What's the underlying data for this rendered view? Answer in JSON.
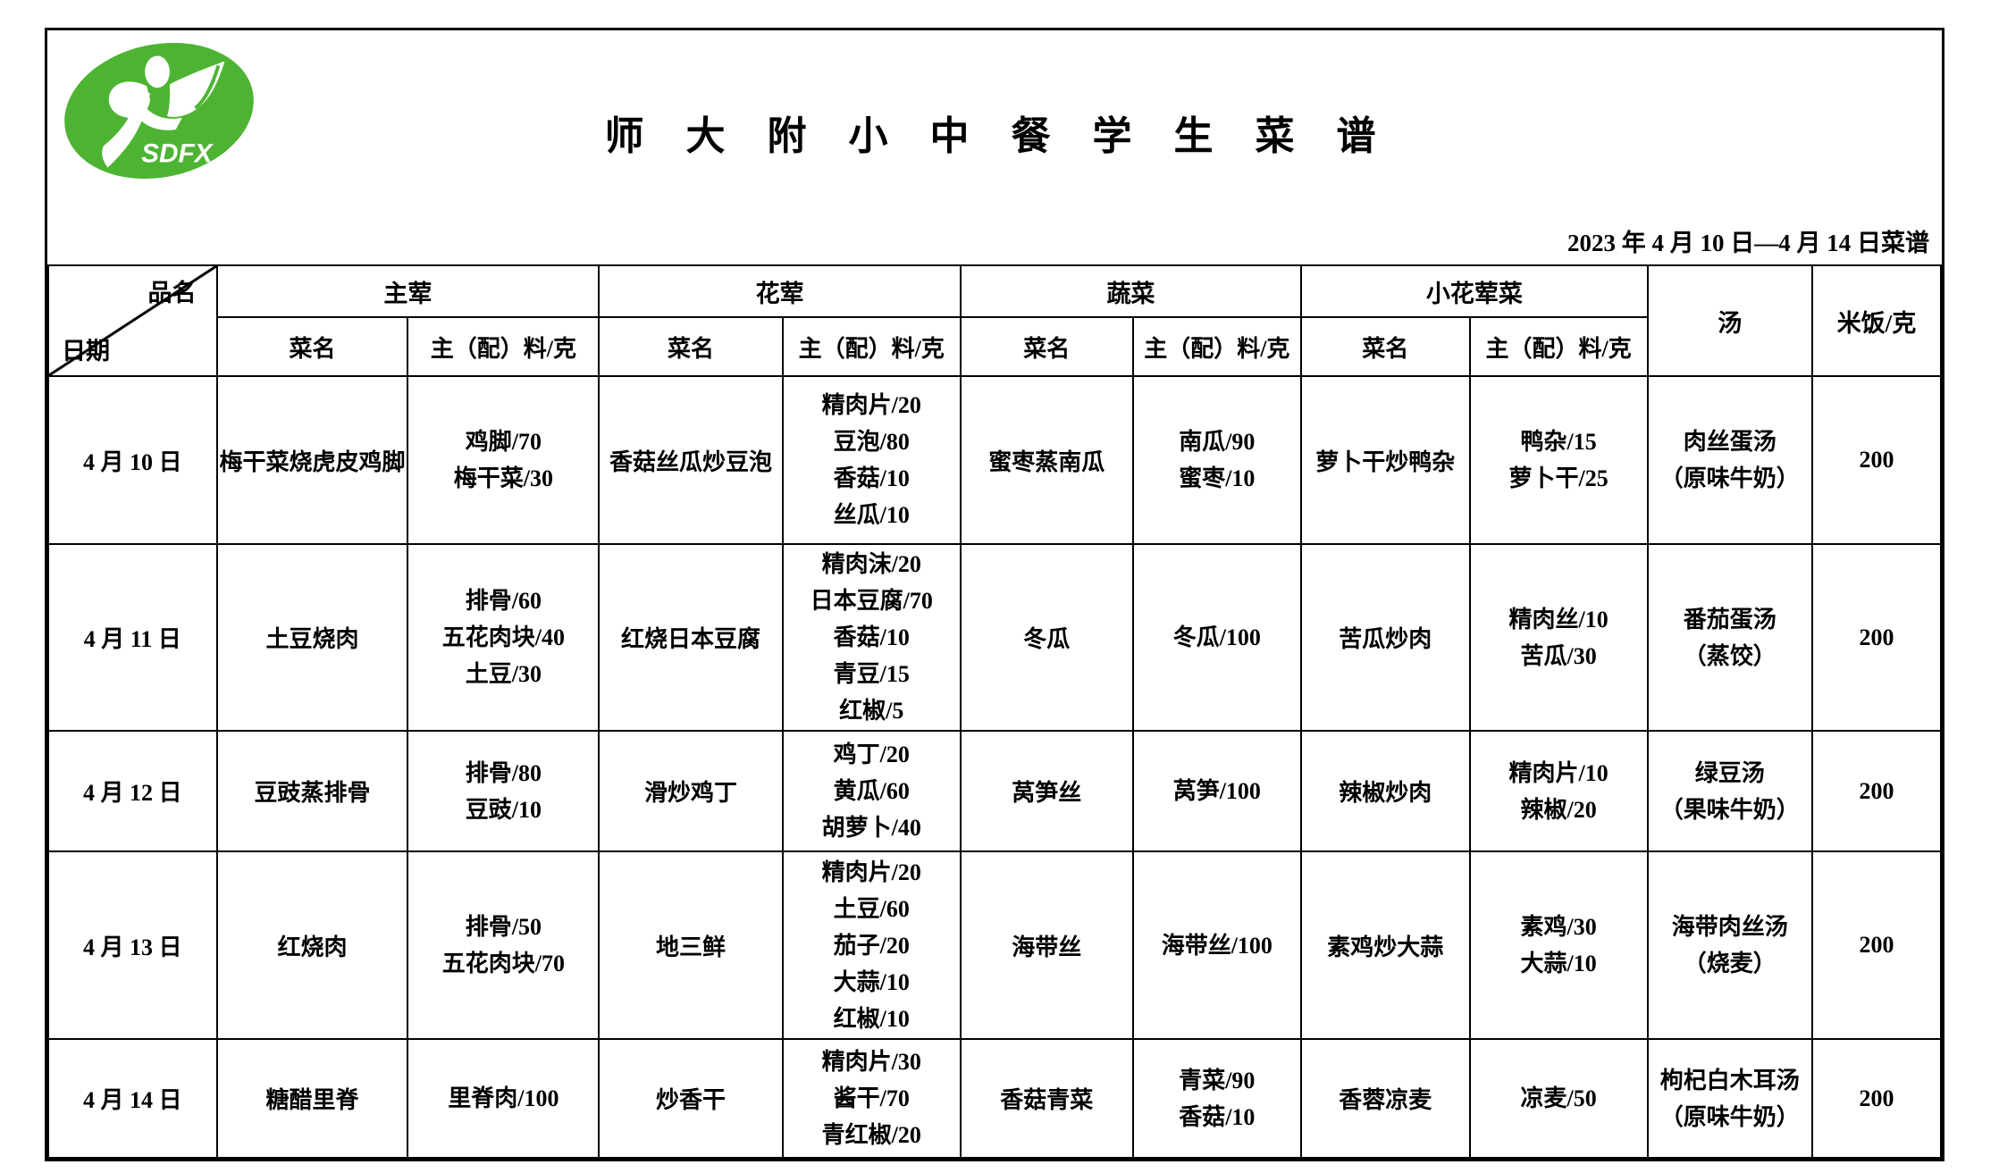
{
  "logo": {
    "name": "school-logo",
    "text": "SDFX",
    "green": "#4cb432"
  },
  "title": "师 大 附 小 中 餐 学 生 菜 谱",
  "date_note": "2023 年 4 月 10 日—4 月 14 日菜谱",
  "table": {
    "corner": {
      "top": "品名",
      "bottom": "日期"
    },
    "groups": [
      {
        "label": "主荤"
      },
      {
        "label": "花荤"
      },
      {
        "label": "蔬菜"
      },
      {
        "label": "小花荤菜"
      }
    ],
    "sub_headers": {
      "dish": "菜名",
      "ingredients": "主（配）料/克"
    },
    "soup_header": "汤",
    "rice_header": "米饭/克",
    "rows": [
      {
        "date": "4 月 10 日",
        "main_meat": {
          "dish": "梅干菜烧虎皮鸡脚",
          "ingredients": [
            "鸡脚/70",
            "梅干菜/30"
          ]
        },
        "half_meat": {
          "dish": "香菇丝瓜炒豆泡",
          "ingredients": [
            "精肉片/20",
            "豆泡/80",
            "香菇/10",
            "丝瓜/10"
          ]
        },
        "vegetable": {
          "dish": "蜜枣蒸南瓜",
          "ingredients": [
            "南瓜/90",
            "蜜枣/10"
          ]
        },
        "small_dish": {
          "dish": "萝卜干炒鸭杂",
          "ingredients": [
            "鸭杂/15",
            "萝卜干/25"
          ]
        },
        "soup": [
          "肉丝蛋汤",
          "（原味牛奶）"
        ],
        "rice": "200"
      },
      {
        "date": "4 月 11 日",
        "main_meat": {
          "dish": "土豆烧肉",
          "ingredients": [
            "排骨/60",
            "五花肉块/40",
            "土豆/30"
          ]
        },
        "half_meat": {
          "dish": "红烧日本豆腐",
          "ingredients": [
            "精肉沫/20",
            "日本豆腐/70",
            "香菇/10",
            "青豆/15",
            "红椒/5"
          ]
        },
        "vegetable": {
          "dish": "冬瓜",
          "ingredients": [
            "冬瓜/100"
          ]
        },
        "small_dish": {
          "dish": "苦瓜炒肉",
          "ingredients": [
            "精肉丝/10",
            "苦瓜/30"
          ]
        },
        "soup": [
          "番茄蛋汤",
          "（蒸饺）"
        ],
        "rice": "200"
      },
      {
        "date": "4 月 12 日",
        "main_meat": {
          "dish": "豆豉蒸排骨",
          "ingredients": [
            "排骨/80",
            "豆豉/10"
          ]
        },
        "half_meat": {
          "dish": "滑炒鸡丁",
          "ingredients": [
            "鸡丁/20",
            "黄瓜/60",
            "胡萝卜/40"
          ]
        },
        "vegetable": {
          "dish": "莴笋丝",
          "ingredients": [
            "莴笋/100"
          ]
        },
        "small_dish": {
          "dish": "辣椒炒肉",
          "ingredients": [
            "精肉片/10",
            "辣椒/20"
          ]
        },
        "soup": [
          "绿豆汤",
          "（果味牛奶）"
        ],
        "rice": "200"
      },
      {
        "date": "4 月 13 日",
        "main_meat": {
          "dish": "红烧肉",
          "ingredients": [
            "排骨/50",
            "五花肉块/70"
          ]
        },
        "half_meat": {
          "dish": "地三鲜",
          "ingredients": [
            "精肉片/20",
            "土豆/60",
            "茄子/20",
            "大蒜/10",
            "红椒/10"
          ]
        },
        "vegetable": {
          "dish": "海带丝",
          "ingredients": [
            "海带丝/100"
          ]
        },
        "small_dish": {
          "dish": "素鸡炒大蒜",
          "ingredients": [
            "素鸡/30",
            "大蒜/10"
          ]
        },
        "soup": [
          "海带肉丝汤",
          "（烧麦）"
        ],
        "rice": "200"
      },
      {
        "date": "4 月 14 日",
        "main_meat": {
          "dish": "糖醋里脊",
          "ingredients": [
            "里脊肉/100"
          ]
        },
        "half_meat": {
          "dish": "炒香干",
          "ingredients": [
            "精肉片/30",
            "酱干/70",
            "青红椒/20"
          ]
        },
        "vegetable": {
          "dish": "香菇青菜",
          "ingredients": [
            "青菜/90",
            "香菇/10"
          ]
        },
        "small_dish": {
          "dish": "香蓉凉麦",
          "ingredients": [
            "凉麦/50"
          ]
        },
        "soup": [
          "枸杞白木耳汤",
          "（原味牛奶）"
        ],
        "rice": "200"
      }
    ]
  }
}
